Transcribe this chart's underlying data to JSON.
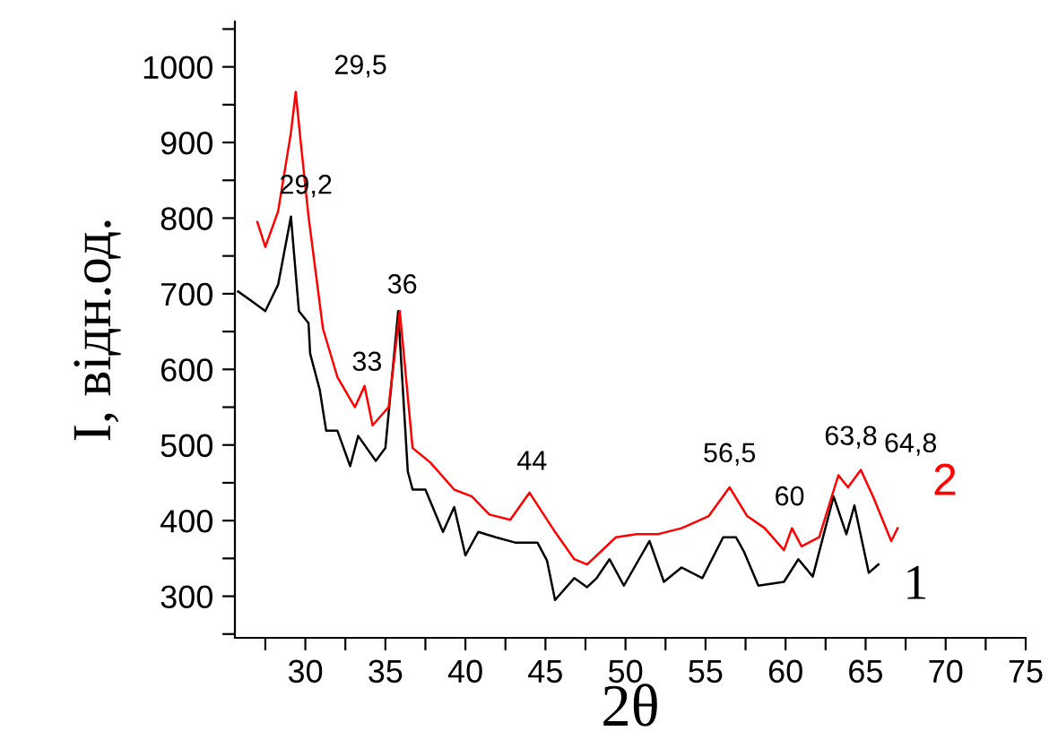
{
  "chart_data": {
    "type": "line",
    "xlabel": "2θ",
    "ylabel": "I, відн.од.",
    "xlim": [
      25.6,
      75
    ],
    "ylim": [
      245,
      1060
    ],
    "xticks": [
      {
        "value": 27.5,
        "label": null
      },
      30,
      {
        "value": 32.5,
        "label": null
      },
      35,
      {
        "value": 37.5,
        "label": null
      },
      40,
      {
        "value": 42.5,
        "label": null
      },
      45,
      {
        "value": 47.5,
        "label": null
      },
      50,
      {
        "value": 52.5,
        "label": null
      },
      55,
      {
        "value": 57.5,
        "label": null
      },
      60,
      {
        "value": 62.5,
        "label": null
      },
      65,
      {
        "value": 67.5,
        "label": null
      },
      70,
      {
        "value": 72.5,
        "label": null
      },
      75
    ],
    "yticks": [
      {
        "value": 250,
        "label": null
      },
      300,
      {
        "value": 350,
        "label": null
      },
      400,
      {
        "value": 450,
        "label": null
      },
      500,
      {
        "value": 550,
        "label": null
      },
      600,
      {
        "value": 650,
        "label": null
      },
      700,
      {
        "value": 750,
        "label": null
      },
      800,
      {
        "value": 850,
        "label": null
      },
      900,
      {
        "value": 950,
        "label": null
      },
      1000,
      {
        "value": 1050,
        "label": null
      }
    ],
    "grid": false,
    "legend": false,
    "marker": "none",
    "line_style": "solid",
    "series": [
      {
        "name": "1",
        "color": "#000000",
        "x": [
          25.8,
          26.6,
          27.5,
          28.3,
          29.1,
          29.6,
          30.2,
          30.3,
          30.9,
          31.3,
          32.0,
          32.8,
          33.3,
          34.4,
          35.0,
          35.8,
          36.4,
          36.7,
          37.5,
          38.6,
          39.3,
          40.0,
          40.8,
          41.9,
          43.1,
          44.5,
          45.1,
          45.6,
          46.8,
          47.6,
          48.2,
          49.0,
          49.9,
          51.5,
          52.4,
          53.5,
          54.8,
          56.1,
          56.9,
          57.4,
          58.3,
          59.9,
          60.8,
          61.7,
          63.0,
          63.8,
          64.3,
          65.2,
          65.8
        ],
        "values": [
          703,
          691,
          677,
          712,
          802,
          677,
          661,
          621,
          573,
          519,
          519,
          472,
          512,
          479,
          496,
          677,
          465,
          441,
          441,
          385,
          418,
          354,
          385,
          378,
          371,
          371,
          347,
          295,
          324,
          312,
          324,
          349,
          314,
          373,
          319,
          338,
          324,
          378,
          378,
          359,
          314,
          319,
          349,
          326,
          432,
          382,
          420,
          331,
          342
        ]
      },
      {
        "name": "2",
        "color": "#ff0000",
        "x": [
          27.0,
          27.5,
          28.3,
          29.1,
          29.4,
          29.7,
          30.2,
          31.1,
          32.0,
          33.1,
          33.7,
          34.2,
          35.2,
          35.9,
          36.7,
          37.8,
          39.3,
          40.4,
          41.5,
          42.8,
          44.0,
          45.6,
          46.8,
          47.6,
          49.4,
          50.7,
          52.0,
          53.5,
          55.2,
          56.5,
          57.6,
          58.7,
          59.9,
          60.4,
          61.0,
          62.1,
          63.3,
          63.9,
          64.7,
          65.5,
          66.6,
          67.0
        ],
        "values": [
          795,
          762,
          809,
          913,
          967,
          903,
          802,
          654,
          590,
          550,
          578,
          526,
          550,
          677,
          496,
          477,
          441,
          432,
          408,
          401,
          437,
          385,
          349,
          342,
          378,
          382,
          382,
          390,
          406,
          444,
          406,
          390,
          361,
          390,
          366,
          378,
          460,
          444,
          467,
          430,
          373,
          390
        ]
      }
    ],
    "annotations": [
      {
        "text": "29,5",
        "x": 29.4,
        "y": 967
      },
      {
        "text": "29,2",
        "x": 29.1,
        "y": 802
      },
      {
        "text": "36",
        "x": 35.9,
        "y": 677
      },
      {
        "text": "33",
        "x": 33.7,
        "y": 578
      },
      {
        "text": "44",
        "x": 44.0,
        "y": 437
      },
      {
        "text": "56,5",
        "x": 56.5,
        "y": 444
      },
      {
        "text": "60",
        "x": 60.4,
        "y": 390
      },
      {
        "text": "63,8",
        "x": 63.3,
        "y": 460
      },
      {
        "text": "64,8",
        "x": 64.7,
        "y": 467
      }
    ]
  }
}
